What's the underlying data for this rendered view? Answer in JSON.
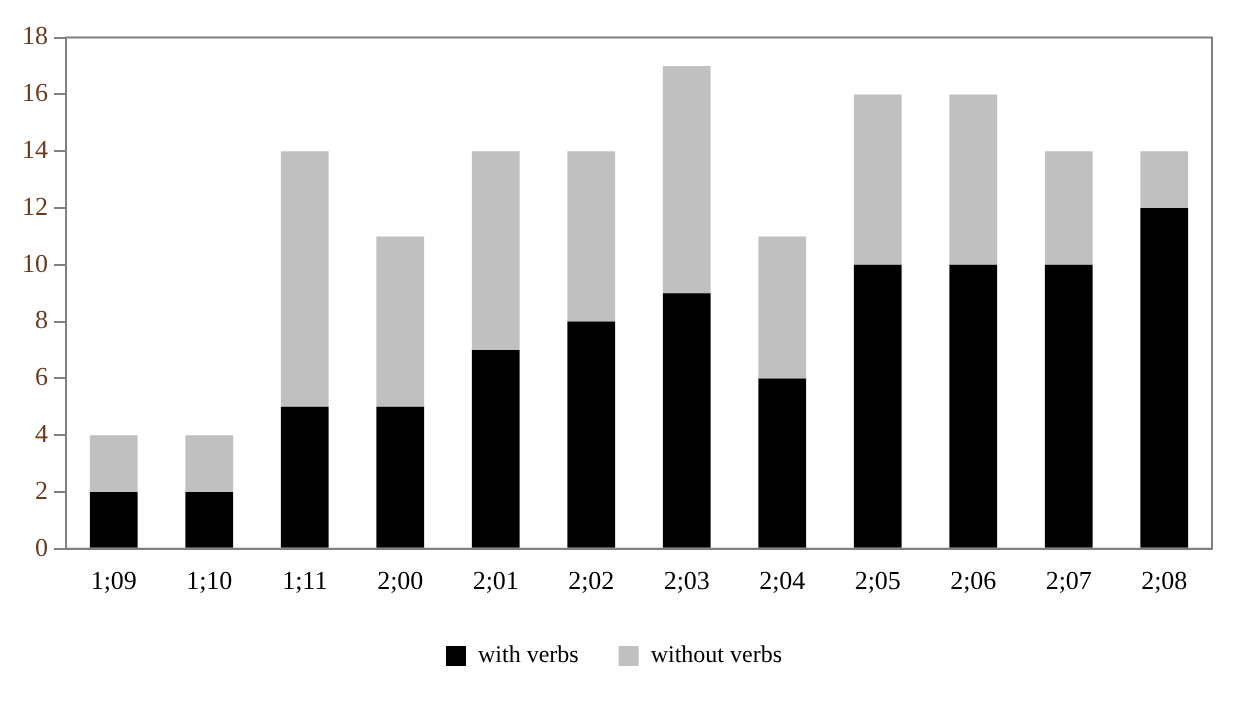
{
  "chart_data": {
    "type": "bar",
    "stacked": true,
    "categories": [
      "1;09",
      "1;10",
      "1;11",
      "2;00",
      "2;01",
      "2;02",
      "2;03",
      "2;04",
      "2;05",
      "2;06",
      "2;07",
      "2;08"
    ],
    "series": [
      {
        "name": "with verbs",
        "color": "#000000",
        "values": [
          2,
          2,
          5,
          5,
          7,
          8,
          9,
          6,
          10,
          10,
          10,
          12
        ]
      },
      {
        "name": "without verbs",
        "color": "#c0c0c0",
        "values": [
          2,
          2,
          9,
          6,
          7,
          6,
          8,
          5,
          6,
          6,
          4,
          2
        ]
      }
    ],
    "ylim": [
      0,
      18
    ],
    "yticks": [
      0,
      2,
      4,
      6,
      8,
      10,
      12,
      14,
      16,
      18
    ],
    "grid": false,
    "legend": "bottom"
  }
}
